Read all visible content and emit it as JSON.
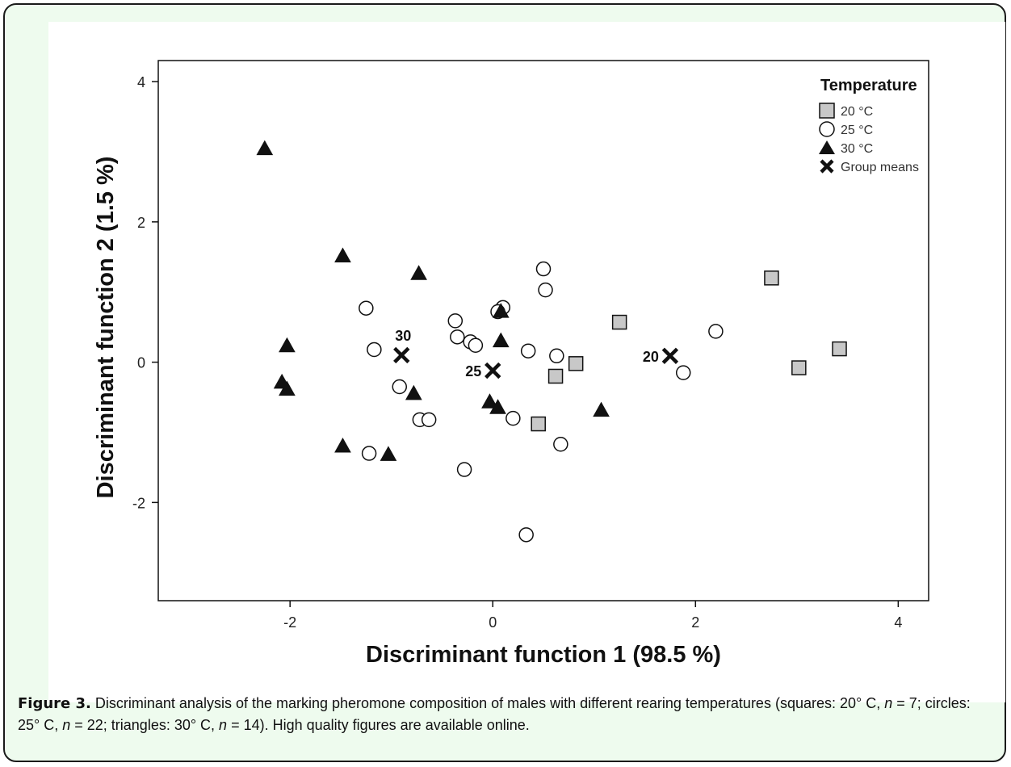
{
  "caption": {
    "label": "Figure 3.",
    "p1": " Discriminant analysis of the marking pheromone composition of males with different rearing temperatures (squares: 20° C, ",
    "n1_label": "n",
    "p2": " = 7; circles: 25° C, ",
    "n2_label": "n",
    "p3": " = 22; triangles: 30° C, ",
    "n3_label": "n",
    "p4": " = 14). High quality figures are available online."
  },
  "chart_data": {
    "type": "scatter",
    "xlabel": "Discriminant function 1 (98.5 %)",
    "ylabel": "Discriminant function 2 (1.5 %)",
    "xlim": [
      -3.3,
      4.3
    ],
    "ylim": [
      -3.4,
      4.3
    ],
    "xticks": [
      -2,
      0,
      2,
      4
    ],
    "yticks": [
      4,
      2,
      0,
      -2
    ],
    "grid": false,
    "legend_position": "top-right",
    "legend_title": "Temperature",
    "series": [
      {
        "name": "20 °C",
        "marker": "square",
        "points": [
          [
            2.75,
            1.2
          ],
          [
            1.25,
            0.57
          ],
          [
            3.42,
            0.19
          ],
          [
            0.82,
            -0.02
          ],
          [
            3.02,
            -0.08
          ],
          [
            0.62,
            -0.2
          ],
          [
            0.45,
            -0.88
          ]
        ]
      },
      {
        "name": "25 °C",
        "marker": "circle",
        "points": [
          [
            0.5,
            1.33
          ],
          [
            0.52,
            1.03
          ],
          [
            -1.25,
            0.77
          ],
          [
            0.1,
            0.78
          ],
          [
            0.05,
            0.72
          ],
          [
            -0.37,
            0.59
          ],
          [
            2.2,
            0.44
          ],
          [
            -0.35,
            0.36
          ],
          [
            -0.22,
            0.29
          ],
          [
            -0.17,
            0.24
          ],
          [
            -1.17,
            0.18
          ],
          [
            0.35,
            0.16
          ],
          [
            0.63,
            0.09
          ],
          [
            1.88,
            -0.15
          ],
          [
            -0.92,
            -0.35
          ],
          [
            -0.72,
            -0.82
          ],
          [
            -0.63,
            -0.82
          ],
          [
            0.2,
            -0.8
          ],
          [
            0.67,
            -1.17
          ],
          [
            -1.22,
            -1.3
          ],
          [
            -0.28,
            -1.53
          ],
          [
            0.33,
            -2.46
          ]
        ]
      },
      {
        "name": "30 °C",
        "marker": "triangle",
        "points": [
          [
            -2.25,
            3.05
          ],
          [
            -1.48,
            1.52
          ],
          [
            -0.73,
            1.27
          ],
          [
            0.08,
            0.73
          ],
          [
            -2.03,
            0.24
          ],
          [
            0.08,
            0.31
          ],
          [
            -2.08,
            -0.28
          ],
          [
            -2.03,
            -0.38
          ],
          [
            -0.78,
            -0.44
          ],
          [
            -0.03,
            -0.56
          ],
          [
            0.05,
            -0.64
          ],
          [
            1.07,
            -0.68
          ],
          [
            -1.48,
            -1.19
          ],
          [
            -1.03,
            -1.31
          ]
        ]
      },
      {
        "name": "Group means",
        "marker": "x",
        "points": [
          [
            -0.9,
            0.1,
            "30"
          ],
          [
            0.0,
            -0.12,
            "25"
          ],
          [
            1.75,
            0.09,
            "20"
          ]
        ]
      }
    ]
  }
}
